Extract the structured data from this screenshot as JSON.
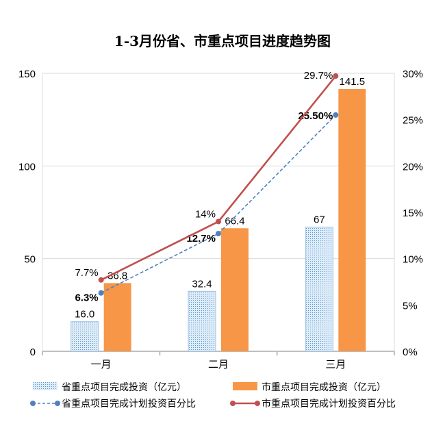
{
  "chart_data": {
    "type": "bar+line",
    "title": "1-3月份省、市重点项目进度趋势图",
    "categories": [
      "一月",
      "二月",
      "三月"
    ],
    "y_left": {
      "range": [
        0,
        150
      ],
      "ticks": [
        "0",
        "50",
        "100",
        "150"
      ]
    },
    "y_right": {
      "range": [
        0,
        0.3
      ],
      "ticks": [
        "0%",
        "5%",
        "10%",
        "15%",
        "20%",
        "25%",
        "30%"
      ]
    },
    "grid": true,
    "legend_placement": "bottom",
    "bar_series": [
      {
        "name": "省重点项目完成投资（亿元）",
        "values": [
          16.0,
          32.4,
          67
        ],
        "labels": [
          "16.0",
          "32.4",
          "67"
        ],
        "color": "#9DC3E6",
        "pattern": "dotted"
      },
      {
        "name": "市重点项目完成投资（亿元）",
        "values": [
          36.8,
          66.4,
          141.5
        ],
        "labels": [
          "36.8",
          "66.4",
          "141.5"
        ],
        "color": "#F79646"
      }
    ],
    "line_series": [
      {
        "name": "省重点项目完成计划投资百分比",
        "values": [
          0.063,
          0.127,
          0.255
        ],
        "labels": [
          "6.3%",
          "12.7%",
          "25.50%"
        ],
        "color": "#4F81BD",
        "style": "dashed"
      },
      {
        "name": "市重点项目完成计划投资百分比",
        "values": [
          0.077,
          0.14,
          0.297
        ],
        "labels": [
          "7.7%",
          "14%",
          "29.7%"
        ],
        "color": "#C0504D",
        "style": "solid"
      }
    ]
  }
}
